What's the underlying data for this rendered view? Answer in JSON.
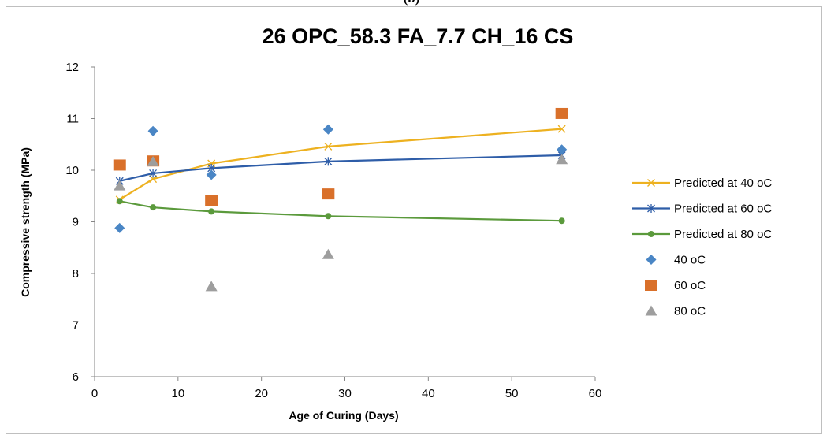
{
  "panel_label": "(b)",
  "chart_data": {
    "type": "scatter",
    "title": "26 OPC_58.3 FA_7.7 CH_16 CS",
    "xlabel": "Age of Curing (Days)",
    "ylabel": "Compressive strength (MPa)",
    "xlim": [
      0,
      60
    ],
    "ylim": [
      6,
      12
    ],
    "x_ticks": [
      0,
      10,
      20,
      30,
      40,
      50,
      60
    ],
    "y_ticks": [
      6,
      7,
      8,
      9,
      10,
      11,
      12
    ],
    "grid": false,
    "legend_position": "right",
    "series": [
      {
        "name": "Predicted at 40 oC",
        "kind": "line",
        "marker": "x",
        "color": "#EDB120",
        "x": [
          3,
          7,
          14,
          28,
          56
        ],
        "y": [
          9.43,
          9.83,
          10.13,
          10.46,
          10.8
        ]
      },
      {
        "name": "Predicted at 60 oC",
        "kind": "line",
        "marker": "star",
        "color": "#2E5DA8",
        "x": [
          3,
          7,
          14,
          28,
          56
        ],
        "y": [
          9.79,
          9.94,
          10.04,
          10.17,
          10.29
        ]
      },
      {
        "name": "Predicted at 80 oC",
        "kind": "line",
        "marker": "circle",
        "color": "#5B9A3C",
        "x": [
          3,
          7,
          14,
          28,
          56
        ],
        "y": [
          9.4,
          9.28,
          9.2,
          9.11,
          9.02
        ]
      },
      {
        "name": "40 oC",
        "kind": "scatter",
        "marker": "diamond",
        "color": "#4A86C5",
        "x": [
          3,
          7,
          14,
          28,
          56
        ],
        "y": [
          8.88,
          10.76,
          9.91,
          10.79,
          10.4
        ]
      },
      {
        "name": "60 oC",
        "kind": "scatter",
        "marker": "square",
        "color": "#D9702A",
        "x": [
          3,
          7,
          14,
          28,
          56
        ],
        "y": [
          10.1,
          10.18,
          9.41,
          9.54,
          11.1
        ]
      },
      {
        "name": "80 oC",
        "kind": "scatter",
        "marker": "triangle",
        "color": "#9E9E9E",
        "x": [
          3,
          7,
          14,
          28,
          56
        ],
        "y": [
          9.7,
          10.17,
          7.75,
          8.37,
          10.21
        ]
      }
    ]
  }
}
